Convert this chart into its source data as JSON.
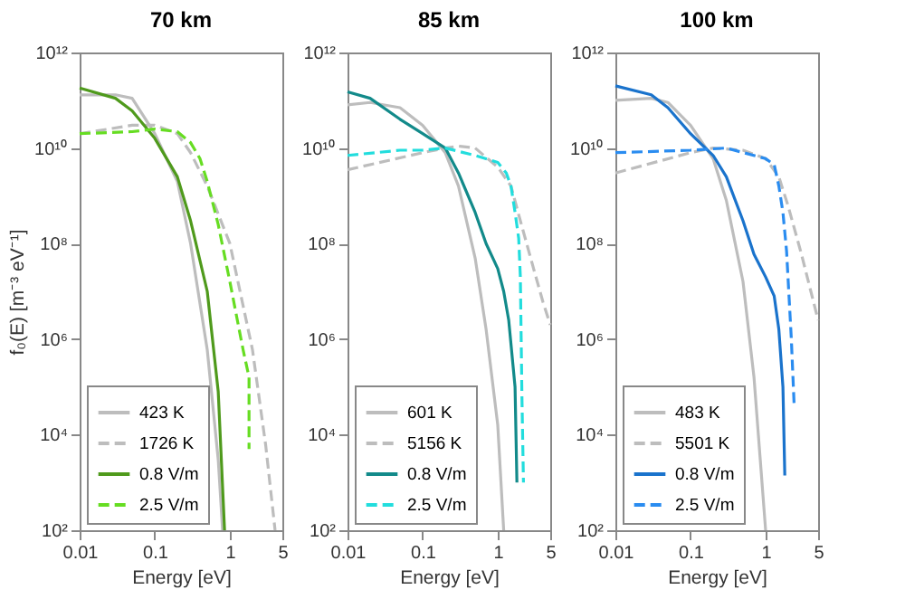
{
  "chart_data": [
    {
      "type": "line",
      "title": "70 km",
      "xlabel": "Energy [eV]",
      "ylabel": "f₀(E) [m⁻³ eV⁻¹]",
      "log": "xy",
      "legend": "bottom left",
      "marker": "none",
      "xlim": [
        0.01,
        5
      ],
      "xticks": [
        0.01,
        0.1,
        1,
        5
      ],
      "ylim": [
        100,
        1000000000000.0
      ],
      "yticks": [
        {
          "value": 100,
          "label": "10²"
        },
        {
          "value": 10000.0,
          "label": "10⁴"
        },
        {
          "value": 1000000.0,
          "label": "10⁶"
        },
        {
          "value": 100000000.0,
          "label": "10⁸"
        },
        {
          "value": 10000000000.0,
          "label": "10¹⁰"
        },
        {
          "value": 1000000000000.0,
          "label": "10¹²"
        }
      ],
      "series": [
        {
          "name": "423 K",
          "color": "#bdbdbd",
          "line_style": "solid",
          "x": [
            0.01,
            0.03,
            0.05,
            0.1,
            0.2,
            0.3,
            0.5,
            0.7,
            0.8
          ],
          "values": [
            130000000000.0,
            130000000000.0,
            110000000000.0,
            20000000000.0,
            2000000000.0,
            100000000.0,
            600000.0,
            3000.0,
            100
          ]
        },
        {
          "name": "1726 K",
          "color": "#bdbdbd",
          "line_style": "dashed",
          "x": [
            0.01,
            0.05,
            0.1,
            0.2,
            0.3,
            0.5,
            1,
            2,
            3,
            4
          ],
          "values": [
            20000000000.0,
            30000000000.0,
            30000000000.0,
            20000000000.0,
            8000000000.0,
            1600000000.0,
            100000000.0,
            600000.0,
            6000.0,
            100
          ]
        },
        {
          "name": "0.8 V/m",
          "color": "#4f9a1c",
          "line_style": "solid",
          "x": [
            0.01,
            0.03,
            0.05,
            0.1,
            0.2,
            0.3,
            0.5,
            0.7,
            0.85
          ],
          "values": [
            180000000000.0,
            110000000000.0,
            60000000000.0,
            16000000000.0,
            2500000000.0,
            300000000.0,
            10000000.0,
            80000.0,
            100
          ]
        },
        {
          "name": "2.5 V/m",
          "color": "#66dd22",
          "line_style": "dashed",
          "x": [
            0.01,
            0.05,
            0.1,
            0.2,
            0.3,
            0.4,
            0.5,
            0.7,
            1,
            1.5,
            1.8,
            1.8
          ],
          "values": [
            20000000000.0,
            22000000000.0,
            25000000000.0,
            22000000000.0,
            13000000000.0,
            6000000000.0,
            2000000000.0,
            250000000.0,
            16000000.0,
            600000.0,
            160000.0,
            5000.0
          ]
        }
      ]
    },
    {
      "type": "line",
      "title": "85 km",
      "xlabel": "Energy [eV]",
      "log": "xy",
      "legend": "bottom left",
      "marker": "none",
      "xlim": [
        0.01,
        5
      ],
      "xticks": [
        0.01,
        0.1,
        1,
        5
      ],
      "ylim": [
        100,
        1000000000000.0
      ],
      "yticks": [
        {
          "value": 100,
          "label": "10²"
        },
        {
          "value": 10000.0,
          "label": "10⁴"
        },
        {
          "value": 1000000.0,
          "label": "10⁶"
        },
        {
          "value": 100000000.0,
          "label": "10⁸"
        },
        {
          "value": 10000000000.0,
          "label": "10¹⁰"
        },
        {
          "value": 1000000000000.0,
          "label": "10¹²"
        }
      ],
      "series": [
        {
          "name": "601 K",
          "color": "#bdbdbd",
          "line_style": "solid",
          "x": [
            0.01,
            0.02,
            0.05,
            0.1,
            0.2,
            0.3,
            0.5,
            0.7,
            1,
            1.2
          ],
          "values": [
            80000000000.0,
            90000000000.0,
            70000000000.0,
            30000000000.0,
            8000000000.0,
            1600000000.0,
            50000000.0,
            1600000.0,
            16000.0,
            100
          ]
        },
        {
          "name": "5156 K",
          "color": "#bdbdbd",
          "line_style": "dashed",
          "x": [
            0.01,
            0.1,
            0.2,
            0.3,
            0.5,
            1,
            1.5,
            2,
            3,
            4,
            5
          ],
          "values": [
            3500000000.0,
            8000000000.0,
            10000000000.0,
            11000000000.0,
            10000000000.0,
            4000000000.0,
            1600000000.0,
            300000000.0,
            30000000.0,
            6000000.0,
            2000000.0
          ]
        },
        {
          "name": "0.8 V/m",
          "color": "#128a8a",
          "line_style": "solid",
          "x": [
            0.01,
            0.02,
            0.05,
            0.1,
            0.2,
            0.3,
            0.5,
            0.7,
            1,
            1.2,
            1.4,
            1.7,
            1.8
          ],
          "values": [
            150000000000.0,
            110000000000.0,
            40000000000.0,
            20000000000.0,
            10000000000.0,
            3000000000.0,
            450000000.0,
            100000000.0,
            30000000.0,
            10000000.0,
            2500000.0,
            100000.0,
            1000.0
          ]
        },
        {
          "name": "2.5 V/m",
          "color": "#22dddd",
          "line_style": "dashed",
          "x": [
            0.01,
            0.05,
            0.1,
            0.2,
            0.5,
            1,
            1.3,
            1.5,
            1.7,
            1.9,
            2,
            2.1,
            2.2
          ],
          "values": [
            7000000000.0,
            9000000000.0,
            9000000000.0,
            10000000000.0,
            7000000000.0,
            5000000000.0,
            3000000000.0,
            1600000000.0,
            450000000.0,
            130000000.0,
            20000000.0,
            60000.0,
            1000.0
          ]
        }
      ]
    },
    {
      "type": "line",
      "title": "100 km",
      "xlabel": "Energy [eV]",
      "log": "xy",
      "legend": "bottom left",
      "marker": "none",
      "xlim": [
        0.01,
        5
      ],
      "xticks": [
        0.01,
        0.1,
        1,
        5
      ],
      "ylim": [
        100,
        1000000000000.0
      ],
      "yticks": [
        {
          "value": 100,
          "label": "10²"
        },
        {
          "value": 10000.0,
          "label": "10⁴"
        },
        {
          "value": 1000000.0,
          "label": "10⁶"
        },
        {
          "value": 100000000.0,
          "label": "10⁸"
        },
        {
          "value": 10000000000.0,
          "label": "10¹⁰"
        },
        {
          "value": 1000000000000.0,
          "label": "10¹²"
        }
      ],
      "series": [
        {
          "name": "483 K",
          "color": "#bdbdbd",
          "line_style": "solid",
          "x": [
            0.01,
            0.03,
            0.05,
            0.1,
            0.2,
            0.3,
            0.5,
            0.7,
            1
          ],
          "values": [
            100000000000.0,
            110000000000.0,
            90000000000.0,
            30000000000.0,
            6000000000.0,
            800000000.0,
            16000000.0,
            160000.0,
            100
          ]
        },
        {
          "name": "5501 K",
          "color": "#bdbdbd",
          "line_style": "dashed",
          "x": [
            0.01,
            0.1,
            0.2,
            0.5,
            1,
            1.5,
            2,
            3,
            4,
            5
          ],
          "values": [
            3000000000.0,
            8000000000.0,
            10000000000.0,
            9000000000.0,
            6000000000.0,
            2500000000.0,
            600000000.0,
            60000000.0,
            10000000.0,
            2500000.0
          ]
        },
        {
          "name": "0.8 V/m",
          "color": "#1a73cc",
          "line_style": "solid",
          "x": [
            0.01,
            0.03,
            0.05,
            0.1,
            0.2,
            0.3,
            0.5,
            0.7,
            1,
            1.3,
            1.5,
            1.7,
            1.8
          ],
          "values": [
            200000000000.0,
            130000000000.0,
            70000000000.0,
            20000000000.0,
            7000000000.0,
            2500000000.0,
            300000000.0,
            60000000.0,
            20000000.0,
            8000000.0,
            1600000.0,
            100000.0,
            1400.0
          ]
        },
        {
          "name": "2.5 V/m",
          "color": "#2a8cf0",
          "line_style": "dashed",
          "x": [
            0.01,
            0.1,
            0.3,
            1,
            1.3,
            1.5,
            1.7,
            1.9,
            2,
            2.2,
            2.4
          ],
          "values": [
            8000000000.0,
            9000000000.0,
            10000000000.0,
            6000000000.0,
            4500000000.0,
            1600000000.0,
            450000000.0,
            70000000.0,
            16000000.0,
            1000000.0,
            40000.0
          ]
        }
      ]
    }
  ]
}
